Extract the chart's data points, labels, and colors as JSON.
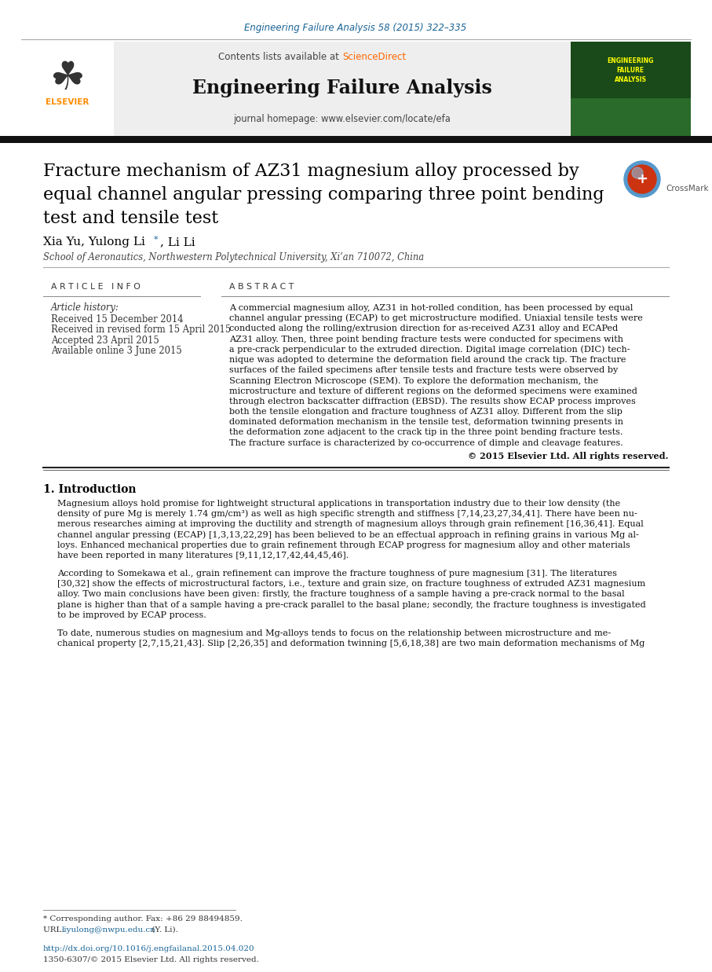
{
  "journal_ref": "Engineering Failure Analysis 58 (2015) 322–335",
  "journal_ref_color": "#1a6496",
  "contents_text": "Contents lists available at ",
  "sciencedirect_text": "ScienceDirect",
  "sciencedirect_color": "#ff6600",
  "journal_name": "Engineering Failure Analysis",
  "journal_homepage": "journal homepage: www.elsevier.com/locate/efa",
  "header_bg": "#eeeeee",
  "paper_title_line1": "Fracture mechanism of AZ31 magnesium alloy processed by",
  "paper_title_line2": "equal channel angular pressing comparing three point bending",
  "paper_title_line3": "test and tensile test",
  "authors": "Xia Yu, Yulong Li",
  "author_star": "*",
  "author_rest": ", Li Li",
  "affiliation": "School of Aeronautics, Northwestern Polytechnical University, Xi’an 710072, China",
  "article_info_header": "A R T I C L E   I N F O",
  "abstract_header": "A B S T R A C T",
  "article_history_label": "Article history:",
  "received1": "Received 15 December 2014",
  "received2": "Received in revised form 15 April 2015",
  "accepted": "Accepted 23 April 2015",
  "available": "Available online 3 June 2015",
  "copyright": "© 2015 Elsevier Ltd. All rights reserved.",
  "intro_header": "1. Introduction",
  "footnote_star": "* Corresponding author. Fax: +86 29 88494859.",
  "footnote_url": "liyulong@nwpu.edu.cn",
  "footnote_url_color": "#1a6496",
  "footnote_url_rest": " (Y. Li).",
  "footnote_doi": "http://dx.doi.org/10.1016/j.engfailanal.2015.04.020",
  "footnote_doi_color": "#1a6496",
  "footnote_issn": "1350-6307/© 2015 Elsevier Ltd. All rights reserved.",
  "bg_color": "#ffffff",
  "text_color": "#000000",
  "abstract_lines": [
    "A commercial magnesium alloy, AZ31 in hot-rolled condition, has been processed by equal",
    "channel angular pressing (ECAP) to get microstructure modified. Uniaxial tensile tests were",
    "conducted along the rolling/extrusion direction for as-received AZ31 alloy and ECAPed",
    "AZ31 alloy. Then, three point bending fracture tests were conducted for specimens with",
    "a pre-crack perpendicular to the extruded direction. Digital image correlation (DIC) tech-",
    "nique was adopted to determine the deformation field around the crack tip. The fracture",
    "surfaces of the failed specimens after tensile tests and fracture tests were observed by",
    "Scanning Electron Microscope (SEM). To explore the deformation mechanism, the",
    "microstructure and texture of different regions on the deformed specimens were examined",
    "through electron backscatter diffraction (EBSD). The results show ECAP process improves",
    "both the tensile elongation and fracture toughness of AZ31 alloy. Different from the slip",
    "dominated deformation mechanism in the tensile test, deformation twinning presents in",
    "the deformation zone adjacent to the crack tip in the three point bending fracture tests.",
    "The fracture surface is characterized by co-occurrence of dimple and cleavage features."
  ],
  "intro_p1_lines": [
    "Magnesium alloys hold promise for lightweight structural applications in transportation industry due to their low density (the",
    "density of pure Mg is merely 1.74 gm/cm³) as well as high specific strength and stiffness [7,14,23,27,34,41]. There have been nu-",
    "merous researches aiming at improving the ductility and strength of magnesium alloys through grain refinement [16,36,41]. Equal",
    "channel angular pressing (ECAP) [1,3,13,22,29] has been believed to be an effectual approach in refining grains in various Mg al-",
    "loys. Enhanced mechanical properties due to grain refinement through ECAP progress for magnesium alloy and other materials",
    "have been reported in many literatures [9,11,12,17,42,44,45,46]."
  ],
  "intro_p2_lines": [
    "According to Somekawa et al., grain refinement can improve the fracture toughness of pure magnesium [31]. The literatures",
    "[30,32] show the effects of microstructural factors, i.e., texture and grain size, on fracture toughness of extruded AZ31 magnesium",
    "alloy. Two main conclusions have been given: firstly, the fracture toughness of a sample having a pre-crack normal to the basal",
    "plane is higher than that of a sample having a pre-crack parallel to the basal plane; secondly, the fracture toughness is investigated",
    "to be improved by ECAP process."
  ],
  "intro_p3_lines": [
    "To date, numerous studies on magnesium and Mg-alloys tends to focus on the relationship between microstructure and me-",
    "chanical property [2,7,15,21,43]. Slip [2,26,35] and deformation twinning [5,6,18,38] are two main deformation mechanisms of Mg"
  ],
  "cover_text_lines": [
    "ENGINEERING",
    "FAILURE",
    "ANALYSIS"
  ]
}
